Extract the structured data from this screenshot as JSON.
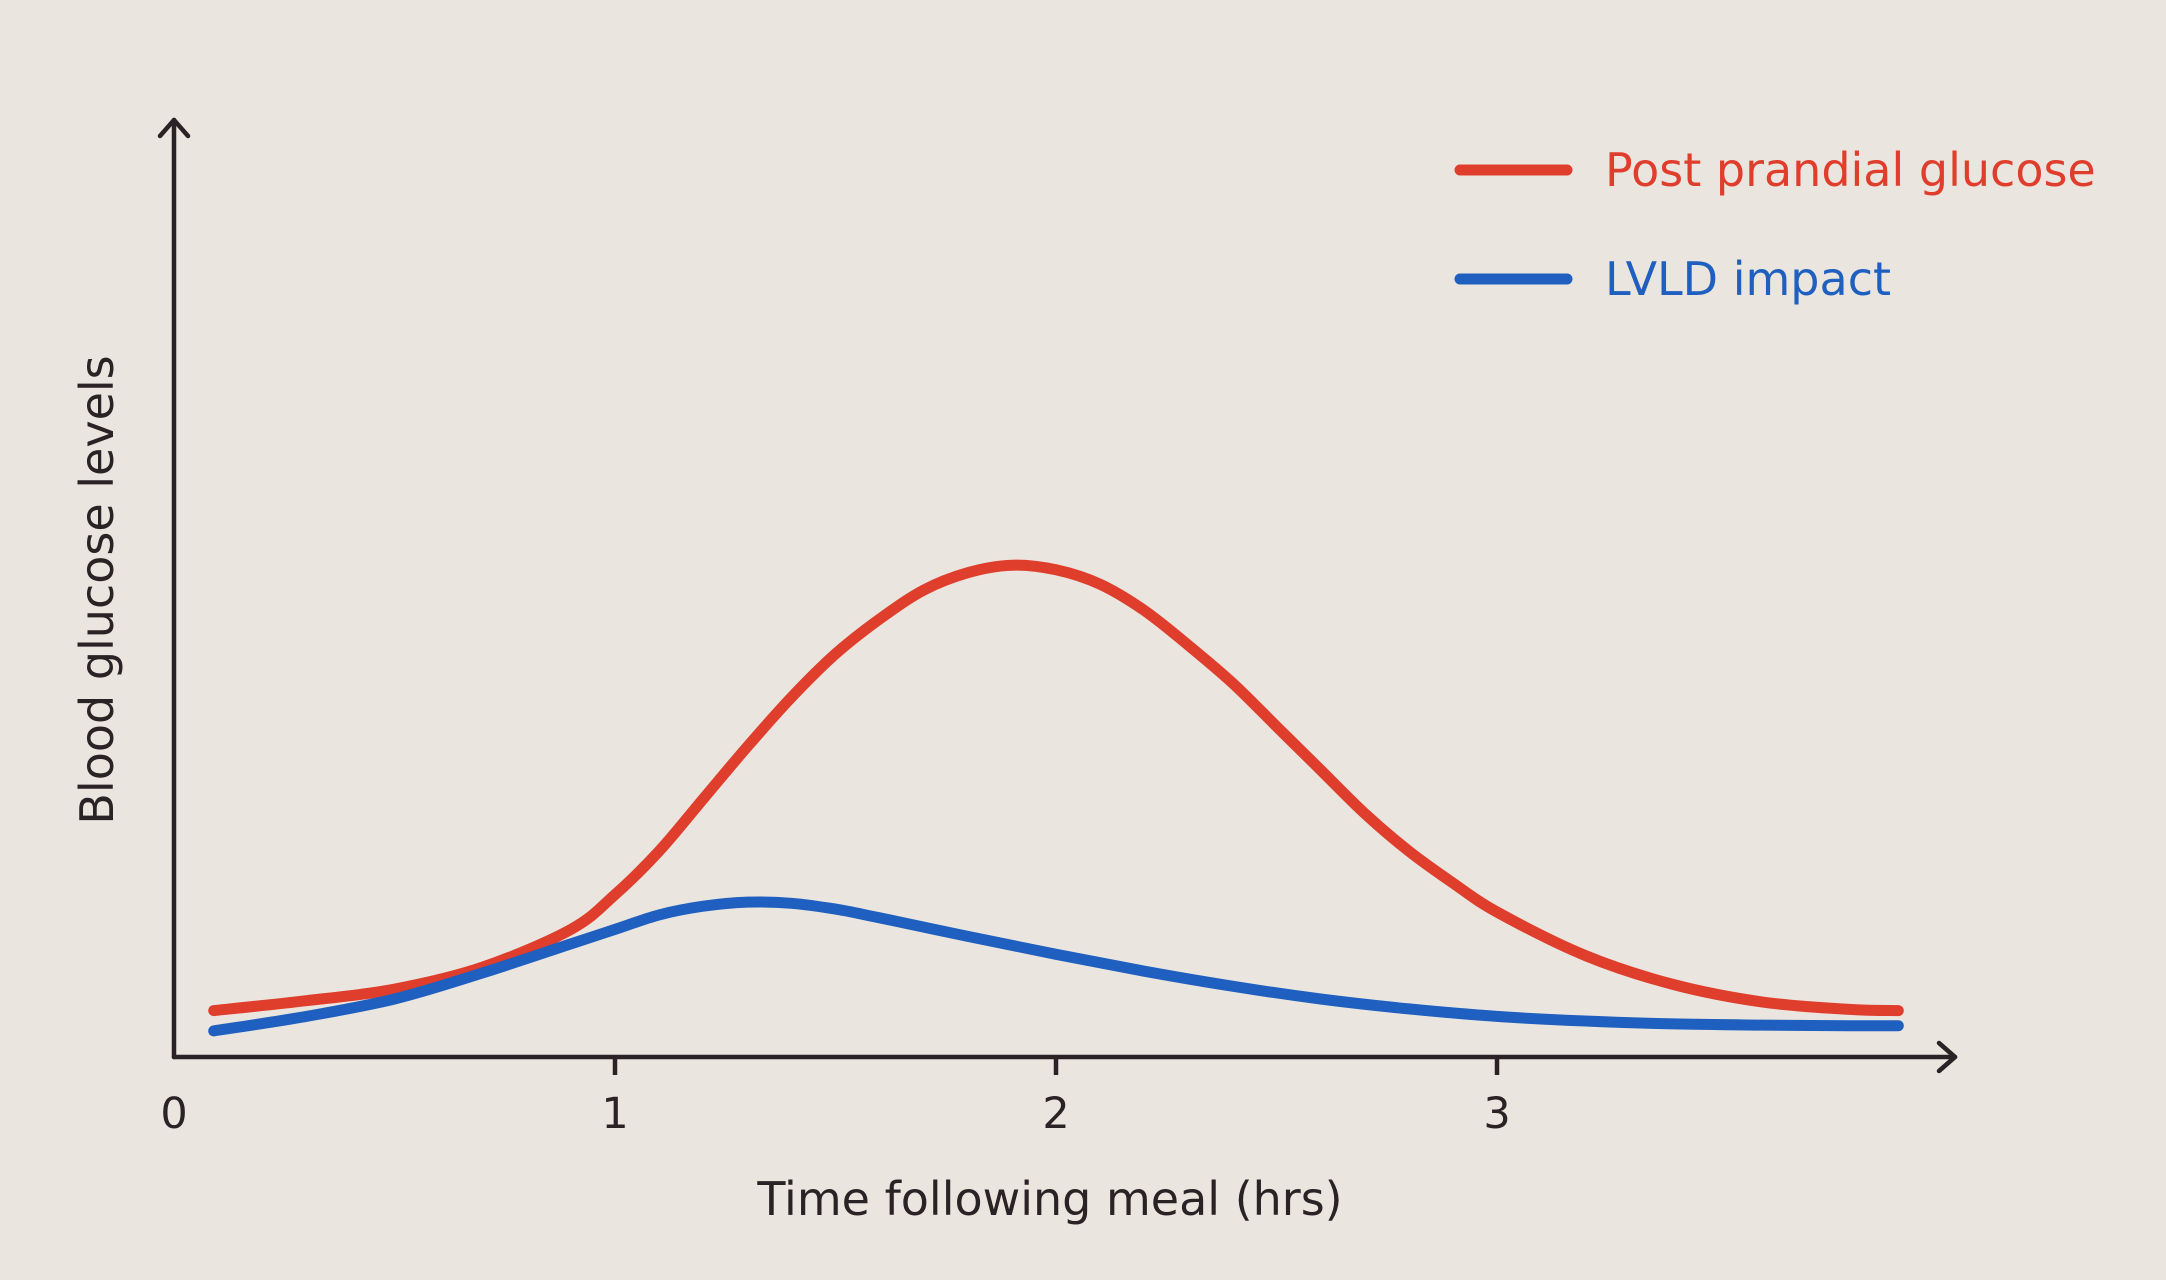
{
  "chart_data": {
    "type": "line",
    "title": "",
    "xlabel": "Time following meal (hrs)",
    "ylabel": "Blood glucose levels",
    "xlim": [
      0,
      4
    ],
    "ylim": [
      0,
      100
    ],
    "x_ticks": [
      "0",
      "1",
      "2",
      "3"
    ],
    "y_ticks": [],
    "grid": false,
    "legend_position": "top-right",
    "series": [
      {
        "name": "Post prandial glucose",
        "color": "#e03e2d",
        "points": [
          [
            0.09,
            8.0
          ],
          [
            0.3,
            9.7
          ],
          [
            0.5,
            11.7
          ],
          [
            0.7,
            15.5
          ],
          [
            0.9,
            22.0
          ],
          [
            1.0,
            28.0
          ],
          [
            1.1,
            35.5
          ],
          [
            1.2,
            44.5
          ],
          [
            1.3,
            53.5
          ],
          [
            1.4,
            62.0
          ],
          [
            1.5,
            69.5
          ],
          [
            1.6,
            75.5
          ],
          [
            1.7,
            80.5
          ],
          [
            1.8,
            83.5
          ],
          [
            1.9,
            84.8
          ],
          [
            2.0,
            84.0
          ],
          [
            2.1,
            81.5
          ],
          [
            2.2,
            77.0
          ],
          [
            2.3,
            71.0
          ],
          [
            2.4,
            64.5
          ],
          [
            2.5,
            57.0
          ],
          [
            2.6,
            49.5
          ],
          [
            2.7,
            42.0
          ],
          [
            2.8,
            35.5
          ],
          [
            2.9,
            30.0
          ],
          [
            3.0,
            25.0
          ],
          [
            3.2,
            17.5
          ],
          [
            3.4,
            12.5
          ],
          [
            3.6,
            9.5
          ],
          [
            3.8,
            8.2
          ],
          [
            3.91,
            8.0
          ]
        ]
      },
      {
        "name": "LVLD impact",
        "color": "#1f5fbf",
        "points": [
          [
            0.09,
            4.5
          ],
          [
            0.3,
            7.0
          ],
          [
            0.5,
            10.0
          ],
          [
            0.7,
            14.5
          ],
          [
            0.9,
            19.5
          ],
          [
            1.0,
            22.0
          ],
          [
            1.1,
            24.5
          ],
          [
            1.2,
            26.0
          ],
          [
            1.3,
            26.7
          ],
          [
            1.4,
            26.5
          ],
          [
            1.5,
            25.5
          ],
          [
            1.6,
            24.0
          ],
          [
            1.8,
            20.8
          ],
          [
            2.0,
            17.7
          ],
          [
            2.2,
            14.8
          ],
          [
            2.4,
            12.2
          ],
          [
            2.6,
            10.0
          ],
          [
            2.8,
            8.3
          ],
          [
            3.0,
            7.0
          ],
          [
            3.2,
            6.2
          ],
          [
            3.4,
            5.7
          ],
          [
            3.6,
            5.5
          ],
          [
            3.8,
            5.4
          ],
          [
            3.91,
            5.4
          ]
        ]
      }
    ]
  }
}
